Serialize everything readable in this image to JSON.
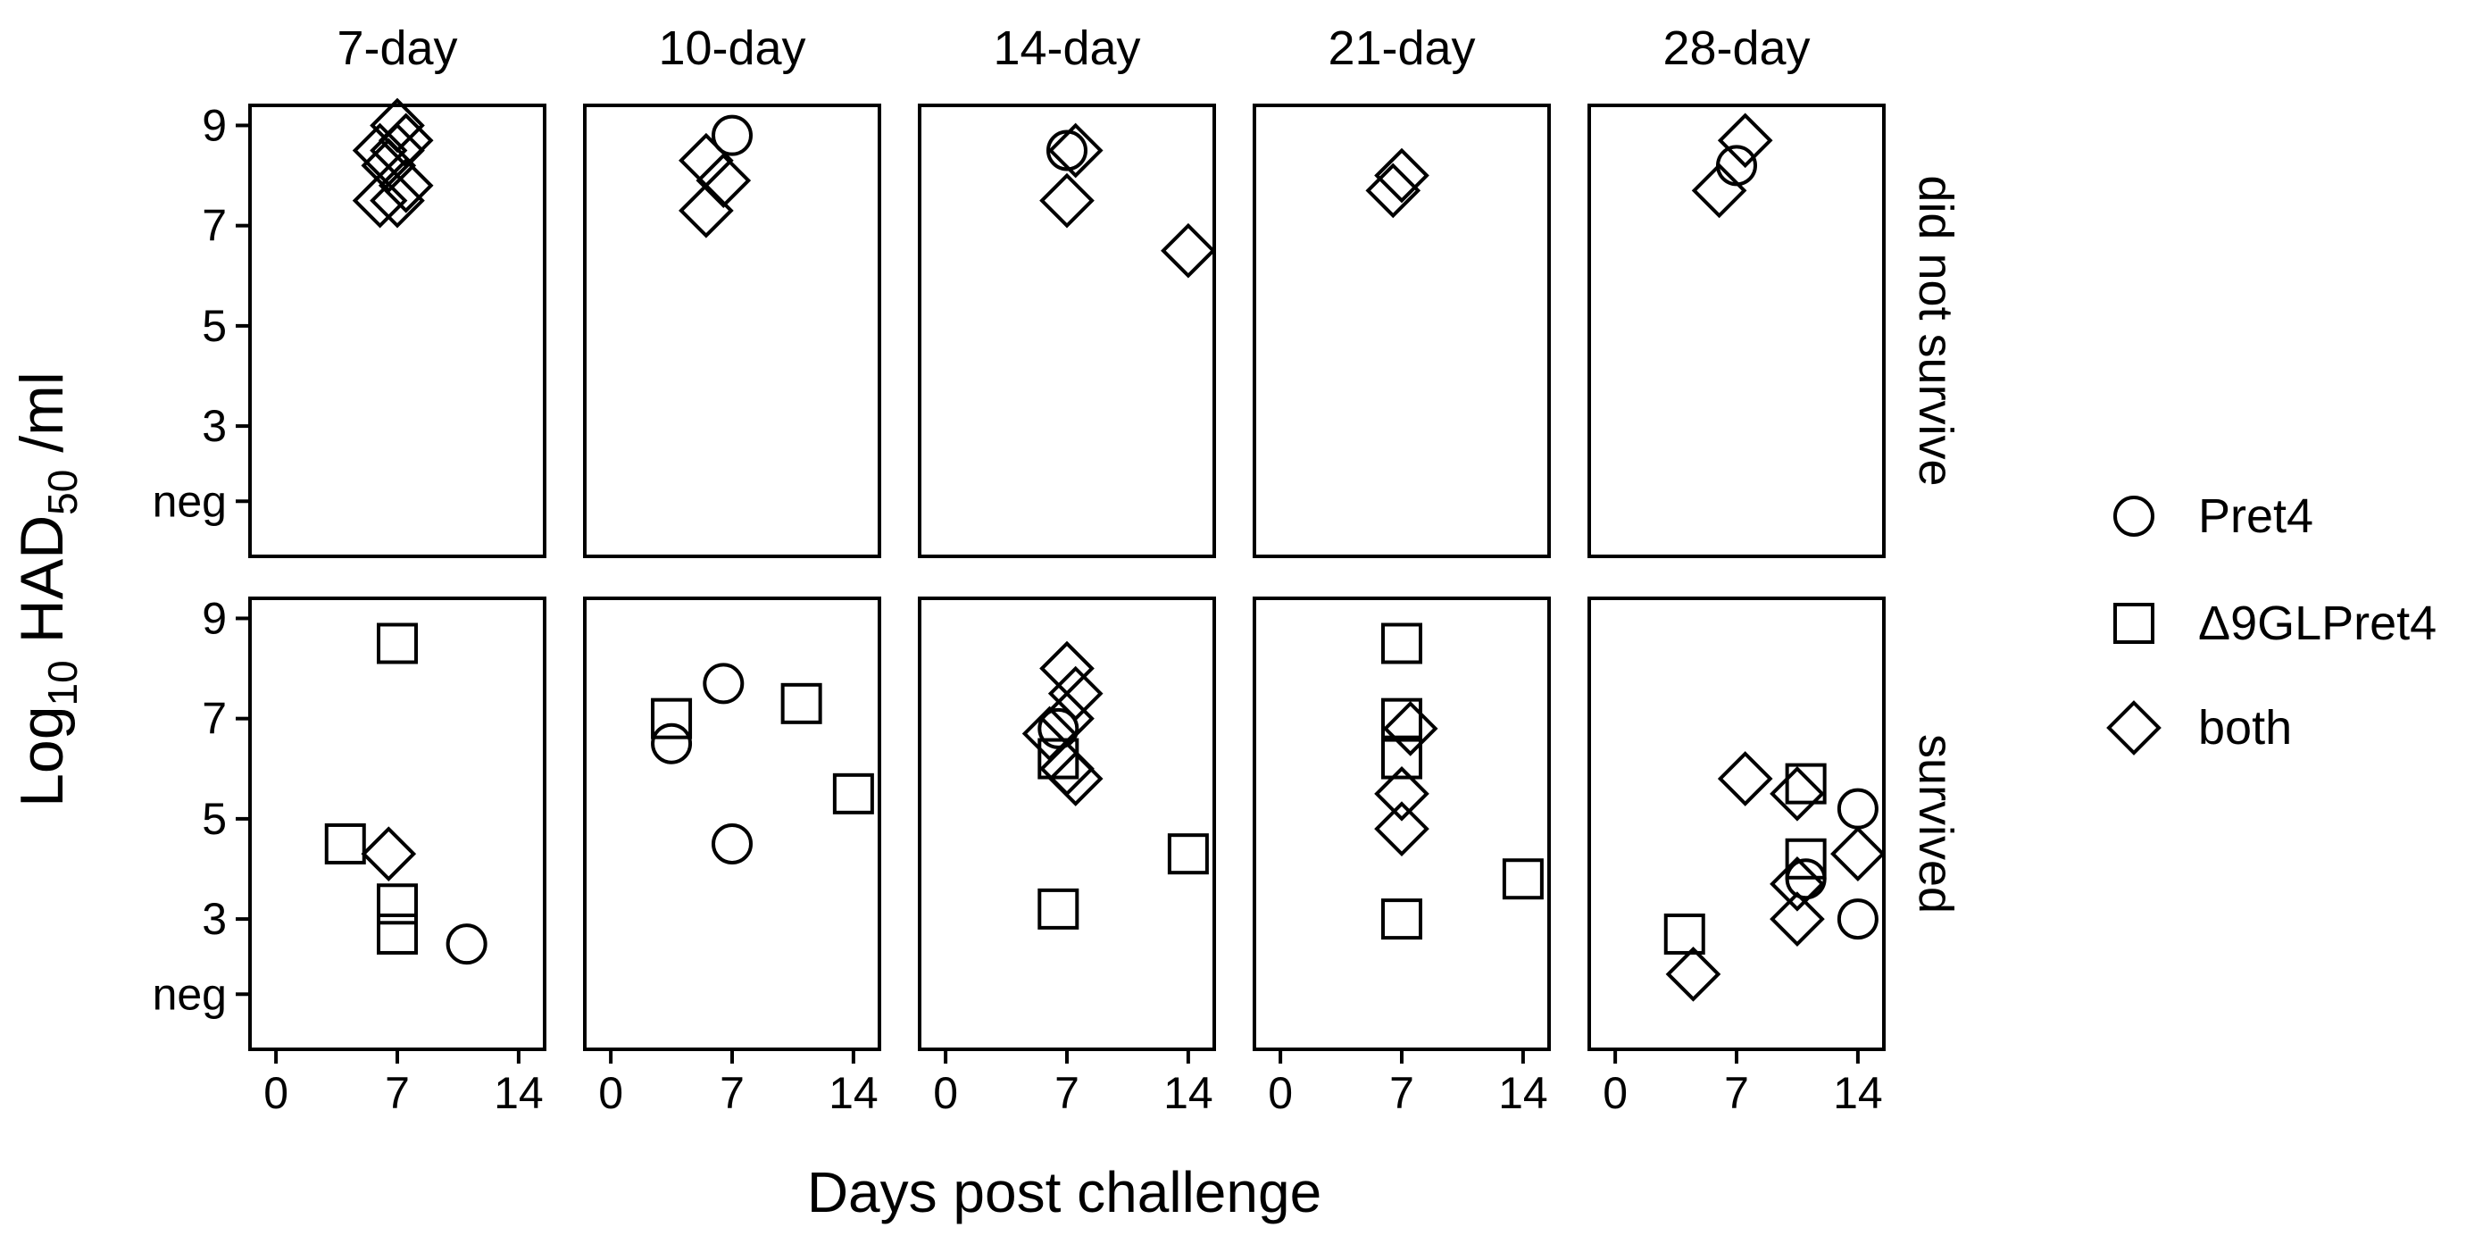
{
  "figure": {
    "ylabel_prefix": "Log",
    "ylabel_sub10": "10",
    "ylabel_mid": " HAD",
    "ylabel_sub50": "50",
    "ylabel_suffix": " /ml",
    "xlabel": "Days post challenge"
  },
  "legend": {
    "items": [
      {
        "label": "Pret4",
        "shape": "circle"
      },
      {
        "label": "Δ9GLPret4",
        "shape": "square"
      },
      {
        "label": "both",
        "shape": "diamond"
      }
    ]
  },
  "chart_data": {
    "type": "scatter",
    "facets": {
      "columns": [
        "7-day",
        "10-day",
        "14-day",
        "21-day",
        "28-day"
      ],
      "rows": [
        "did not survive",
        "survived"
      ]
    },
    "xlabel": "Days post challenge",
    "ylabel": "Log10 HAD50 /ml",
    "xlim": [
      -1.5,
      15.5
    ],
    "xticks": [
      0,
      7,
      14
    ],
    "ylim": [
      0.4,
      9.4
    ],
    "yticks": [
      {
        "value": 1.5,
        "label": "neg"
      },
      {
        "value": 3,
        "label": "3"
      },
      {
        "value": 5,
        "label": "5"
      },
      {
        "value": 7,
        "label": "7"
      },
      {
        "value": 9,
        "label": "9"
      }
    ],
    "series": [
      {
        "name": "Pret4",
        "shape": "circle",
        "points": [
          {
            "col": 1,
            "row": 0,
            "x": 7.0,
            "y": 8.8
          },
          {
            "col": 2,
            "row": 0,
            "x": 7.0,
            "y": 8.5
          },
          {
            "col": 4,
            "row": 0,
            "x": 7.0,
            "y": 8.2
          },
          {
            "col": 0,
            "row": 1,
            "x": 11.0,
            "y": 2.5
          },
          {
            "col": 1,
            "row": 1,
            "x": 3.5,
            "y": 6.5
          },
          {
            "col": 1,
            "row": 1,
            "x": 6.5,
            "y": 7.7
          },
          {
            "col": 1,
            "row": 1,
            "x": 7.0,
            "y": 4.5
          },
          {
            "col": 2,
            "row": 1,
            "x": 6.5,
            "y": 6.8
          },
          {
            "col": 4,
            "row": 1,
            "x": 11.0,
            "y": 3.8
          },
          {
            "col": 4,
            "row": 1,
            "x": 14.0,
            "y": 5.2
          },
          {
            "col": 4,
            "row": 1,
            "x": 14.0,
            "y": 3.0
          }
        ]
      },
      {
        "name": "Δ9GLPret4",
        "shape": "square",
        "points": [
          {
            "col": 0,
            "row": 1,
            "x": 7.0,
            "y": 8.5
          },
          {
            "col": 0,
            "row": 1,
            "x": 4.0,
            "y": 4.5
          },
          {
            "col": 0,
            "row": 1,
            "x": 7.0,
            "y": 3.3
          },
          {
            "col": 0,
            "row": 1,
            "x": 7.0,
            "y": 2.7
          },
          {
            "col": 1,
            "row": 1,
            "x": 3.5,
            "y": 7.0
          },
          {
            "col": 1,
            "row": 1,
            "x": 11.0,
            "y": 7.3
          },
          {
            "col": 1,
            "row": 1,
            "x": 14.0,
            "y": 5.5
          },
          {
            "col": 2,
            "row": 1,
            "x": 6.5,
            "y": 6.2
          },
          {
            "col": 2,
            "row": 1,
            "x": 14.0,
            "y": 4.3
          },
          {
            "col": 2,
            "row": 1,
            "x": 6.5,
            "y": 3.2
          },
          {
            "col": 3,
            "row": 1,
            "x": 7.0,
            "y": 8.5
          },
          {
            "col": 3,
            "row": 1,
            "x": 7.0,
            "y": 7.0
          },
          {
            "col": 3,
            "row": 1,
            "x": 7.0,
            "y": 6.2
          },
          {
            "col": 3,
            "row": 1,
            "x": 14.0,
            "y": 3.8
          },
          {
            "col": 3,
            "row": 1,
            "x": 7.0,
            "y": 3.0
          },
          {
            "col": 4,
            "row": 1,
            "x": 11.0,
            "y": 5.7
          },
          {
            "col": 4,
            "row": 1,
            "x": 11.0,
            "y": 4.2
          },
          {
            "col": 4,
            "row": 1,
            "x": 4.0,
            "y": 2.7
          }
        ]
      },
      {
        "name": "both",
        "shape": "diamond",
        "points": [
          {
            "col": 0,
            "row": 0,
            "x": 7.0,
            "y": 9.0
          },
          {
            "col": 0,
            "row": 0,
            "x": 7.5,
            "y": 8.7
          },
          {
            "col": 0,
            "row": 0,
            "x": 6.0,
            "y": 8.5
          },
          {
            "col": 0,
            "row": 0,
            "x": 7.0,
            "y": 8.5
          },
          {
            "col": 0,
            "row": 0,
            "x": 6.5,
            "y": 8.2
          },
          {
            "col": 0,
            "row": 0,
            "x": 7.5,
            "y": 7.8
          },
          {
            "col": 0,
            "row": 0,
            "x": 6.0,
            "y": 7.5
          },
          {
            "col": 0,
            "row": 0,
            "x": 7.0,
            "y": 7.5
          },
          {
            "col": 1,
            "row": 0,
            "x": 5.5,
            "y": 8.3
          },
          {
            "col": 1,
            "row": 0,
            "x": 6.5,
            "y": 7.9
          },
          {
            "col": 1,
            "row": 0,
            "x": 5.5,
            "y": 7.3
          },
          {
            "col": 2,
            "row": 0,
            "x": 7.5,
            "y": 8.5
          },
          {
            "col": 2,
            "row": 0,
            "x": 7.0,
            "y": 7.5
          },
          {
            "col": 2,
            "row": 0,
            "x": 14.0,
            "y": 6.5
          },
          {
            "col": 3,
            "row": 0,
            "x": 7.0,
            "y": 8.0
          },
          {
            "col": 3,
            "row": 0,
            "x": 6.5,
            "y": 7.7
          },
          {
            "col": 4,
            "row": 0,
            "x": 7.5,
            "y": 8.7
          },
          {
            "col": 4,
            "row": 0,
            "x": 6.0,
            "y": 7.7
          },
          {
            "col": 0,
            "row": 1,
            "x": 6.5,
            "y": 4.3
          },
          {
            "col": 2,
            "row": 1,
            "x": 7.0,
            "y": 8.0
          },
          {
            "col": 2,
            "row": 1,
            "x": 7.5,
            "y": 7.5
          },
          {
            "col": 2,
            "row": 1,
            "x": 7.0,
            "y": 7.0
          },
          {
            "col": 2,
            "row": 1,
            "x": 6.0,
            "y": 6.7
          },
          {
            "col": 2,
            "row": 1,
            "x": 7.0,
            "y": 6.0
          },
          {
            "col": 2,
            "row": 1,
            "x": 7.5,
            "y": 5.8
          },
          {
            "col": 3,
            "row": 1,
            "x": 7.5,
            "y": 6.8
          },
          {
            "col": 3,
            "row": 1,
            "x": 7.0,
            "y": 5.5
          },
          {
            "col": 3,
            "row": 1,
            "x": 7.0,
            "y": 4.8
          },
          {
            "col": 4,
            "row": 1,
            "x": 7.5,
            "y": 5.8
          },
          {
            "col": 4,
            "row": 1,
            "x": 10.5,
            "y": 5.5
          },
          {
            "col": 4,
            "row": 1,
            "x": 14.0,
            "y": 4.3
          },
          {
            "col": 4,
            "row": 1,
            "x": 10.5,
            "y": 3.7
          },
          {
            "col": 4,
            "row": 1,
            "x": 10.5,
            "y": 3.0
          },
          {
            "col": 4,
            "row": 1,
            "x": 4.5,
            "y": 1.9
          }
        ]
      }
    ]
  }
}
